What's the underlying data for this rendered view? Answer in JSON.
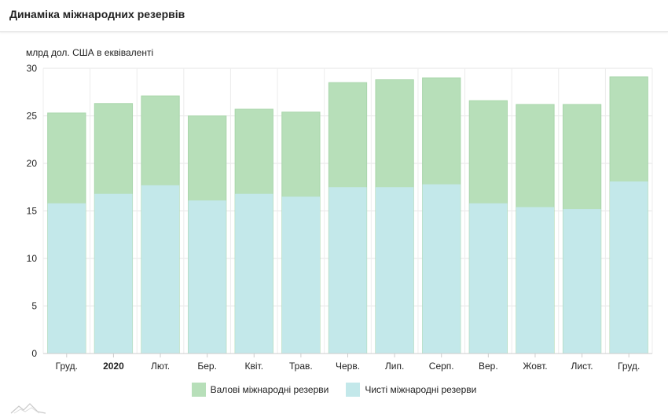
{
  "title": "Динаміка міжнародних резервів",
  "unit_label": "млрд дол. США в еквіваленті",
  "chart_data": {
    "type": "bar",
    "stacked_overlay": true,
    "categories": [
      "Груд.",
      "2020",
      "Лют.",
      "Бер.",
      "Квіт.",
      "Трав.",
      "Черв.",
      "Лип.",
      "Серп.",
      "Вер.",
      "Жовт.",
      "Лист.",
      "Груд."
    ],
    "bold_categories": [
      "2020"
    ],
    "series": [
      {
        "name": "Валові міжнародні резерви",
        "color": "#b7dfb9",
        "values": [
          25.3,
          26.3,
          27.1,
          25.0,
          25.7,
          25.4,
          28.5,
          28.8,
          29.0,
          26.6,
          26.2,
          26.2,
          29.1
        ]
      },
      {
        "name": "Чисті міжнародні резерви",
        "color": "#c3e8ea",
        "values": [
          15.8,
          16.8,
          17.7,
          16.1,
          16.8,
          16.5,
          17.5,
          17.5,
          17.8,
          15.8,
          15.4,
          15.2,
          18.1
        ]
      }
    ],
    "ylim": [
      0,
      30
    ],
    "yticks": [
      0,
      5,
      10,
      15,
      20,
      25,
      30
    ],
    "xlabel": "",
    "ylabel": "млрд дол. США в еквіваленті",
    "grid": true,
    "legend": "bottom-center"
  }
}
